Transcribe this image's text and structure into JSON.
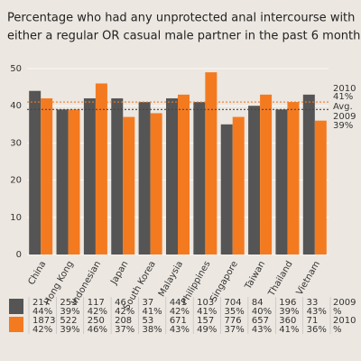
{
  "chart_data": {
    "type": "bar",
    "title": [
      "Percentage who had any unprotected anal intercourse with",
      "either a regular OR casual male partner in the past 6 months"
    ],
    "categories": [
      "China",
      "Hong Kong",
      "Indonesian",
      "Japan",
      "South Korea",
      "Malaysia",
      "Philippines",
      "Singapore",
      "Taiwan",
      "Thailand",
      "Vietnam"
    ],
    "series": [
      {
        "name": "2009",
        "color": "#555555",
        "values": [
          44,
          39,
          42,
          42,
          41,
          42,
          41,
          35,
          40,
          39,
          43
        ],
        "value_labels": [
          "44%",
          "39%",
          "42%",
          "42%",
          "41%",
          "42%",
          "41%",
          "35%",
          "40%",
          "39%",
          "43%"
        ],
        "n": [
          217,
          253,
          117,
          46,
          37,
          441,
          103,
          704,
          84,
          196,
          33
        ]
      },
      {
        "name": "2010",
        "color": "#f47a20",
        "values": [
          42,
          39,
          46,
          37,
          38,
          43,
          49,
          37,
          43,
          41,
          36
        ],
        "value_labels": [
          "42%",
          "39%",
          "46%",
          "37%",
          "38%",
          "43%",
          "49%",
          "37%",
          "43%",
          "41%",
          "36%"
        ],
        "n": [
          1873,
          522,
          250,
          208,
          53,
          671,
          157,
          776,
          657,
          360,
          71
        ]
      }
    ],
    "table_unit": "%",
    "reference_title": "Avg.",
    "reference_lines": [
      {
        "name": "2010",
        "value": 41,
        "label": "41%",
        "color": "#f47a20"
      },
      {
        "name": "2009",
        "value": 39,
        "label": "39%",
        "color": "#444444"
      }
    ],
    "ylim": [
      0,
      50
    ],
    "yticks": [
      0,
      10,
      20,
      30,
      40,
      50
    ],
    "grid": true
  }
}
